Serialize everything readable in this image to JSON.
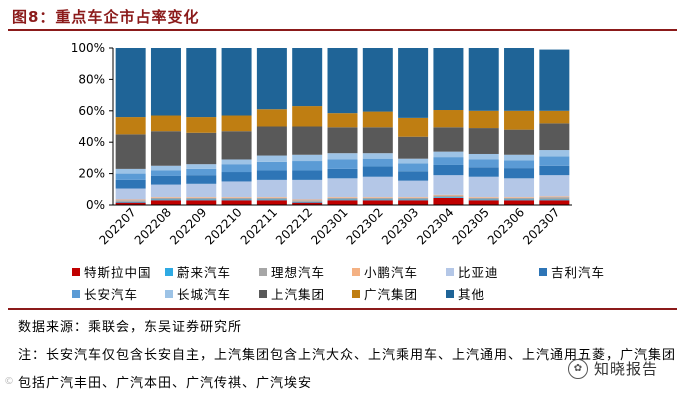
{
  "header": {
    "title": "图8：重点车企市占率变化"
  },
  "chart_data": {
    "type": "bar",
    "stacked": true,
    "categories": [
      "202207",
      "202208",
      "202209",
      "202210",
      "202211",
      "202212",
      "202301",
      "202302",
      "202303",
      "202304",
      "202305",
      "202306",
      "202307"
    ],
    "ylim": [
      0,
      100
    ],
    "yticks": [
      "0%",
      "20%",
      "40%",
      "60%",
      "80%",
      "100%"
    ],
    "grid": false,
    "legend_position": "bottom",
    "series": [
      {
        "name": "特斯拉中国",
        "color": "#c00000",
        "values": [
          1.5,
          3.0,
          3.0,
          3.0,
          3.0,
          1.5,
          3.0,
          3.0,
          3.0,
          4.5,
          3.0,
          3.0,
          3.0
        ]
      },
      {
        "name": "蔚来汽车",
        "color": "#2eaae3",
        "values": [
          0.5,
          0.5,
          0.5,
          0.5,
          0.5,
          0.5,
          0.5,
          0.5,
          0.5,
          0.5,
          0.5,
          0.5,
          0.5
        ]
      },
      {
        "name": "理想汽车",
        "color": "#a6a6a6",
        "values": [
          1.0,
          1.0,
          1.0,
          1.0,
          1.0,
          1.0,
          1.0,
          1.0,
          1.0,
          1.0,
          1.0,
          1.0,
          1.5
        ]
      },
      {
        "name": "小鹏汽车",
        "color": "#f4b183",
        "values": [
          0.5,
          0.5,
          0.5,
          0.5,
          0.5,
          0.5,
          0.5,
          0.5,
          0.5,
          0.5,
          0.5,
          0.5,
          0.5
        ]
      },
      {
        "name": "比亚迪",
        "color": "#b4c7e7",
        "values": [
          7.0,
          8.0,
          8.5,
          10.0,
          11.0,
          12.5,
          12.0,
          13.0,
          10.5,
          12.5,
          13.0,
          12.0,
          13.5
        ]
      },
      {
        "name": "吉利汽车",
        "color": "#2e75b6",
        "values": [
          5.5,
          5.5,
          5.5,
          6.0,
          6.0,
          6.0,
          6.0,
          6.5,
          6.0,
          6.5,
          6.0,
          6.5,
          6.0
        ]
      },
      {
        "name": "长安汽车",
        "color": "#5b9bd5",
        "values": [
          4.0,
          3.5,
          4.0,
          5.0,
          5.5,
          6.0,
          6.0,
          5.0,
          5.0,
          5.0,
          5.0,
          5.0,
          6.0
        ]
      },
      {
        "name": "长城汽车",
        "color": "#9dc3e6",
        "values": [
          3.0,
          3.0,
          3.0,
          3.0,
          4.0,
          4.0,
          4.0,
          3.5,
          3.0,
          3.5,
          3.5,
          3.5,
          4.0
        ]
      },
      {
        "name": "上汽集团",
        "color": "#595959",
        "values": [
          22.0,
          22.0,
          20.0,
          18.0,
          18.5,
          18.0,
          16.5,
          16.5,
          14.0,
          15.5,
          16.5,
          16.0,
          17.0
        ]
      },
      {
        "name": "广汽集团",
        "color": "#bf7e12",
        "values": [
          11.0,
          10.0,
          10.0,
          10.0,
          11.0,
          13.0,
          9.0,
          10.0,
          12.0,
          11.0,
          11.0,
          12.0,
          8.0
        ]
      },
      {
        "name": "其他",
        "color": "#1f6497",
        "values": [
          44.0,
          43.0,
          44.0,
          43.0,
          39.0,
          37.0,
          41.5,
          40.5,
          44.5,
          39.5,
          40.0,
          40.0,
          39.0
        ]
      }
    ]
  },
  "source": "数据来源：乘联会，东吴证券研究所",
  "note": "注：长安汽车仅包含长安自主，上汽集团包含上汽大众、上汽乘用车、上汽通用、上汽通用五菱，广汽集团包括广汽丰田、广汽本田、广汽传祺、广汽埃安",
  "watermark": {
    "logo_glyph": "✿",
    "text": "知晓报告"
  },
  "corner_mark": "©"
}
